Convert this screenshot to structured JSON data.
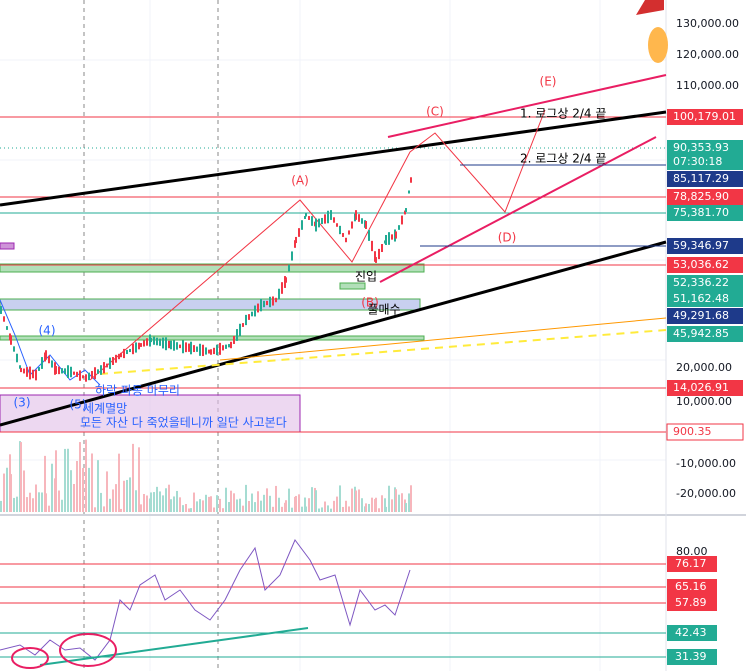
{
  "price_axis": {
    "labels": [
      "130,000.00",
      "120,000.00",
      "110,000.00",
      "20,000.00",
      "10,000.00",
      "-10,000.00",
      "-20,000.00"
    ],
    "tags": [
      {
        "label": "100,179.01",
        "color": "#f23645"
      },
      {
        "label": "90,353.93",
        "color": "#22ab94"
      },
      {
        "label": "07:30:18",
        "color": "#22ab94"
      },
      {
        "label": "85,117.29",
        "color": "#1e3a8a"
      },
      {
        "label": "78,825.90",
        "color": "#f23645"
      },
      {
        "label": "75,381.70",
        "color": "#22ab94"
      },
      {
        "label": "59,346.97",
        "color": "#1e3a8a"
      },
      {
        "label": "53,036.62",
        "color": "#f23645"
      },
      {
        "label": "52,336.22",
        "color": "#22ab94"
      },
      {
        "label": "51,162.48",
        "color": "#22ab94"
      },
      {
        "label": "49,291.68",
        "color": "#1e3a8a"
      },
      {
        "label": "45,942.85",
        "color": "#22ab94"
      },
      {
        "label": "14,026.91",
        "color": "#f23645"
      },
      {
        "label": "900.35",
        "color": "#f23645"
      }
    ]
  },
  "oscillator_axis": {
    "labels": [
      "80.00"
    ],
    "tags": [
      {
        "label": "76.17",
        "color": "#f23645"
      },
      {
        "label": "65.16",
        "color": "#f23645"
      },
      {
        "label": "57.89",
        "color": "#f23645"
      },
      {
        "label": "42.43",
        "color": "#22ab94"
      },
      {
        "label": "31.39",
        "color": "#22ab94"
      }
    ]
  },
  "annotations": {
    "a": "(A)",
    "b": "(B)",
    "c": "(C)",
    "d": "(D)",
    "e": "(E)",
    "target1": "1. 로그상 2/4 끝",
    "target2": "2. 로그상 2/4 끝",
    "entry": "진입",
    "full_buy": "풀매수",
    "w3": "(3)",
    "w4": "(4)",
    "w5": "(5)",
    "downwave_end": "하락 파동 마무리",
    "doom": "세계멸망",
    "buy_note": "모든 자산 다 죽었을테니까 일단 사고본다"
  }
}
